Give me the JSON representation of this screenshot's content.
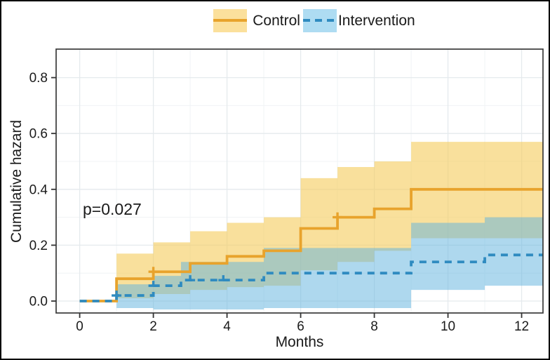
{
  "figure": {
    "background": "#ffffff",
    "frame_color": "#000000"
  },
  "legend": {
    "position": "top",
    "items": [
      {
        "label": "Control",
        "line_style": "solid",
        "line_color": "#E8A32C",
        "swatch_color": "#FBE09C"
      },
      {
        "label": "Intervention",
        "line_style": "dashed",
        "line_color": "#2F8BC0",
        "swatch_color": "#AEDCF2"
      }
    ]
  },
  "chart_data": {
    "type": "line",
    "subtype": "step-function-cumulative-hazard",
    "title": "",
    "xlabel": "Months",
    "ylabel": "Cumulative hazard",
    "annotation": "p=0.027",
    "xlim": [
      -0.64,
      12.58
    ],
    "ylim": [
      -0.0427,
      0.902
    ],
    "grid": {
      "major": true,
      "minor": true
    },
    "legend_position": "top",
    "x_ticks": [
      {
        "value": 0,
        "label": "0"
      },
      {
        "value": 2,
        "label": "2"
      },
      {
        "value": 4,
        "label": "4"
      },
      {
        "value": 6,
        "label": "6"
      },
      {
        "value": 8,
        "label": "8"
      },
      {
        "value": 10,
        "label": "10"
      },
      {
        "value": 12,
        "label": "12"
      }
    ],
    "y_ticks": [
      {
        "value": 0.0,
        "label": "0.0"
      },
      {
        "value": 0.2,
        "label": "0.2"
      },
      {
        "value": 0.4,
        "label": "0.4"
      },
      {
        "value": 0.6,
        "label": "0.6"
      },
      {
        "value": 0.8,
        "label": "0.8"
      }
    ],
    "x_minor": [
      1,
      3,
      5,
      7,
      9,
      11
    ],
    "y_minor": [
      0.1,
      0.3,
      0.5,
      0.7
    ],
    "series": [
      {
        "name": "Control",
        "style": "solid",
        "color": "#E8A32C",
        "band_color": "rgba(245,205,95,0.62)",
        "end_x": 12.58,
        "steps": [
          [
            0,
            0
          ],
          [
            1,
            0.08
          ],
          [
            2,
            0.105
          ],
          [
            3,
            0.135
          ],
          [
            4,
            0.16
          ],
          [
            5,
            0.18
          ],
          [
            6,
            0.26
          ],
          [
            7,
            0.3
          ],
          [
            8,
            0.33
          ],
          [
            9,
            0.4
          ]
        ],
        "censor_marks": [
          [
            2,
            0.105
          ],
          [
            7,
            0.3
          ]
        ],
        "band": [
          {
            "t": 1,
            "lo": 0.01,
            "hi": 0.17
          },
          {
            "t": 2,
            "lo": 0.025,
            "hi": 0.21
          },
          {
            "t": 3,
            "lo": 0.04,
            "hi": 0.25
          },
          {
            "t": 4,
            "lo": 0.05,
            "hi": 0.28
          },
          {
            "t": 5,
            "lo": 0.055,
            "hi": 0.3
          },
          {
            "t": 6,
            "lo": 0.11,
            "hi": 0.44
          },
          {
            "t": 7,
            "lo": 0.14,
            "hi": 0.48
          },
          {
            "t": 8,
            "lo": 0.18,
            "hi": 0.5
          },
          {
            "t": 9,
            "lo": 0.225,
            "hi": 0.57
          }
        ]
      },
      {
        "name": "Intervention",
        "style": "dashed",
        "color": "#2F8BC0",
        "band_color": "rgba(100,180,222,0.52)",
        "end_x": 12.58,
        "steps": [
          [
            0,
            0
          ],
          [
            1,
            0.02
          ],
          [
            2,
            0.055
          ],
          [
            2.75,
            0.075
          ],
          [
            5,
            0.1
          ],
          [
            9,
            0.14
          ],
          [
            11,
            0.165
          ]
        ],
        "censor_marks": [
          [
            1,
            0.02
          ],
          [
            2,
            0.055
          ],
          [
            3,
            0.075
          ],
          [
            3.9,
            0.075
          ]
        ],
        "band": [
          {
            "t": 1,
            "lo": -0.025,
            "hi": 0.06
          },
          {
            "t": 2,
            "lo": -0.03,
            "hi": 0.09
          },
          {
            "t": 2.75,
            "lo": -0.03,
            "hi": 0.14
          },
          {
            "t": 5,
            "lo": -0.025,
            "hi": 0.19
          },
          {
            "t": 9,
            "lo": 0.04,
            "hi": 0.28
          },
          {
            "t": 11,
            "lo": 0.055,
            "hi": 0.3
          }
        ]
      }
    ],
    "panel": {
      "border_color": "#3a3a3a",
      "grid_major_color": "#e5eaed",
      "grid_minor_color": "#f0f3f5",
      "tick_color": "#333333"
    }
  }
}
